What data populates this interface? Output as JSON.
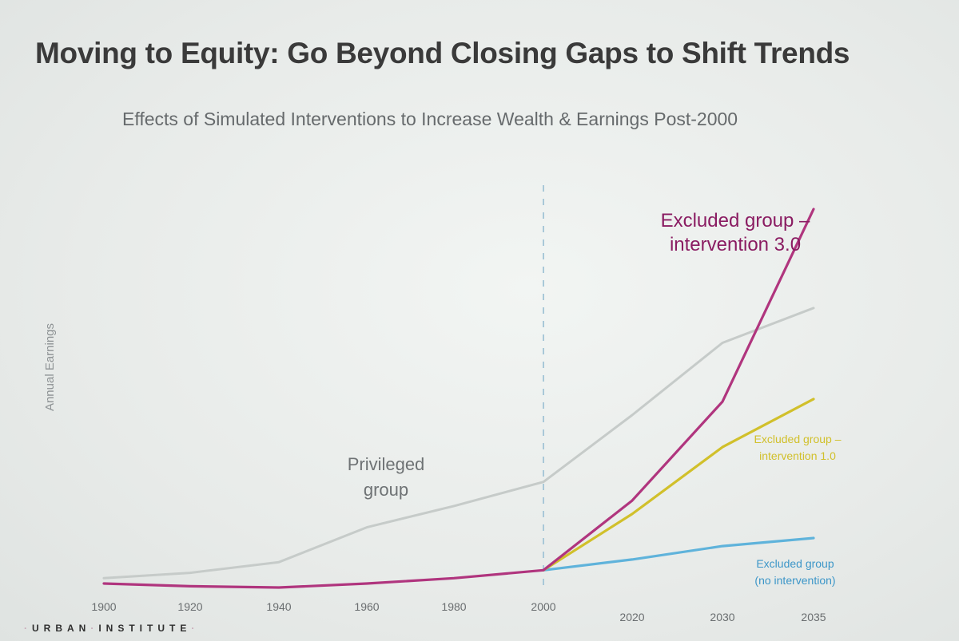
{
  "slide": {
    "title": "Moving to Equity: Go Beyond Closing Gaps to Shift Trends",
    "subtitle": "Effects of Simulated Interventions to Increase Wealth & Earnings Post-2000",
    "footer_left": "URBAN",
    "footer_right": "INSTITUTE"
  },
  "colors": {
    "privileged": "#c6cbc9",
    "intervention_3": "#b0357e",
    "intervention_1": "#d1c02b",
    "no_intervention": "#5fb3db",
    "divider": "#a9c8d8",
    "axis_text": "#6a6e70"
  },
  "chart_data": {
    "type": "line",
    "title": "Effects of Simulated Interventions to Increase Wealth & Earnings Post-2000",
    "xlabel": "",
    "ylabel": "Annual Earnings",
    "x_ticks": [
      "1900",
      "1920",
      "1940",
      "1960",
      "1980",
      "2000",
      "2020",
      "2030",
      "2035"
    ],
    "ylim": [
      0,
      100
    ],
    "grid": false,
    "reference_line": {
      "x": "2000",
      "style": "dashed"
    },
    "series": [
      {
        "key": "privileged",
        "name": "Privileged group",
        "label_lines": [
          "Privileged",
          "group"
        ],
        "x": [
          "1900",
          "1920",
          "1940",
          "1960",
          "1980",
          "2000",
          "2020",
          "2030",
          "2035"
        ],
        "values": [
          2,
          4,
          8,
          21,
          29,
          38,
          63,
          90,
          103
        ]
      },
      {
        "key": "intervention_3",
        "name": "Excluded group – intervention 3.0",
        "label_lines": [
          "Excluded group –",
          "intervention 3.0"
        ],
        "x": [
          "1900",
          "1920",
          "1940",
          "1960",
          "1980",
          "2000",
          "2020",
          "2030",
          "2035"
        ],
        "values": [
          0,
          -1,
          -1.5,
          0,
          2,
          5,
          31,
          68,
          140
        ]
      },
      {
        "key": "intervention_1",
        "name": "Excluded group – intervention 1.0",
        "label_lines": [
          "Excluded group –",
          "intervention 1.0"
        ],
        "x": [
          "2000",
          "2020",
          "2030",
          "2035"
        ],
        "values": [
          5,
          26,
          51,
          69
        ]
      },
      {
        "key": "no_intervention",
        "name": "Excluded group (no intervention)",
        "label_lines": [
          "Excluded group",
          "(no intervention)"
        ],
        "x": [
          "2000",
          "2020",
          "2030",
          "2035"
        ],
        "values": [
          5,
          9,
          14,
          17
        ]
      }
    ]
  }
}
